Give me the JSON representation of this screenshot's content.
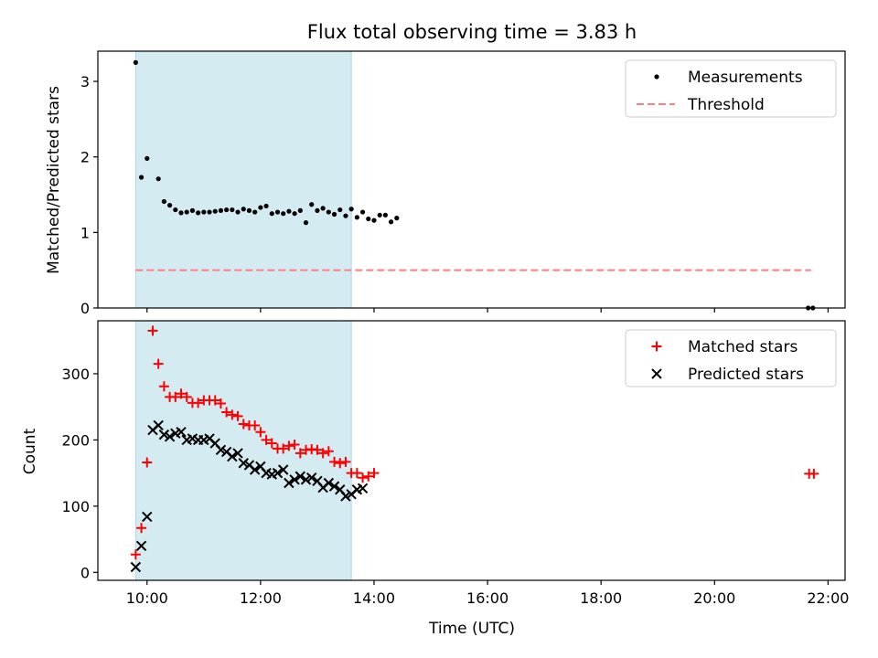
{
  "chart_data": [
    {
      "type": "scatter",
      "title": "Flux total observing time = 3.83 h",
      "xlabel": "",
      "ylabel": "Matched/Predicted stars",
      "xlim": [
        "09:08",
        "22:18"
      ],
      "ylim": [
        0,
        3.4
      ],
      "yticks": [
        0,
        1,
        2,
        3
      ],
      "xticks": [
        "10:00",
        "12:00",
        "14:00",
        "16:00",
        "18:00",
        "20:00",
        "22:00"
      ],
      "shaded_span": [
        "09:48",
        "13:36"
      ],
      "shaded_color": "#add8e6",
      "legend_position": "top-right",
      "series": [
        {
          "name": "Measurements",
          "marker": "dot",
          "color": "#000000",
          "points": [
            [
              "09:48",
              3.25
            ],
            [
              "09:54",
              1.73
            ],
            [
              "10:00",
              1.98
            ],
            [
              "10:12",
              1.71
            ],
            [
              "10:18",
              1.41
            ],
            [
              "10:24",
              1.36
            ],
            [
              "10:30",
              1.3
            ],
            [
              "10:36",
              1.26
            ],
            [
              "10:42",
              1.27
            ],
            [
              "10:48",
              1.29
            ],
            [
              "10:54",
              1.26
            ],
            [
              "11:00",
              1.27
            ],
            [
              "11:06",
              1.27
            ],
            [
              "11:12",
              1.28
            ],
            [
              "11:18",
              1.29
            ],
            [
              "11:24",
              1.3
            ],
            [
              "11:30",
              1.3
            ],
            [
              "11:36",
              1.27
            ],
            [
              "11:42",
              1.31
            ],
            [
              "11:48",
              1.29
            ],
            [
              "11:54",
              1.27
            ],
            [
              "12:00",
              1.33
            ],
            [
              "12:06",
              1.35
            ],
            [
              "12:12",
              1.25
            ],
            [
              "12:18",
              1.27
            ],
            [
              "12:24",
              1.25
            ],
            [
              "12:30",
              1.28
            ],
            [
              "12:36",
              1.25
            ],
            [
              "12:42",
              1.29
            ],
            [
              "12:48",
              1.13
            ],
            [
              "12:54",
              1.37
            ],
            [
              "13:00",
              1.29
            ],
            [
              "13:06",
              1.32
            ],
            [
              "13:12",
              1.27
            ],
            [
              "13:18",
              1.24
            ],
            [
              "13:24",
              1.3
            ],
            [
              "13:30",
              1.22
            ],
            [
              "13:36",
              1.31
            ],
            [
              "13:42",
              1.2
            ],
            [
              "13:48",
              1.27
            ],
            [
              "13:54",
              1.18
            ],
            [
              "14:00",
              1.16
            ],
            [
              "14:06",
              1.23
            ],
            [
              "14:12",
              1.23
            ],
            [
              "14:18",
              1.14
            ],
            [
              "14:24",
              1.19
            ],
            [
              "21:39",
              0.0
            ],
            [
              "21:44",
              0.0
            ]
          ]
        },
        {
          "name": "Threshold",
          "marker": "dashed-line",
          "color": "#ff7f7f",
          "points": [
            [
              "09:48",
              0.5
            ],
            [
              "21:42",
              0.5
            ]
          ]
        }
      ]
    },
    {
      "type": "scatter",
      "title": "",
      "xlabel": "Time (UTC)",
      "ylabel": "Count",
      "xlim": [
        "09:08",
        "22:18"
      ],
      "ylim": [
        -12,
        380
      ],
      "yticks": [
        0,
        100,
        200,
        300
      ],
      "xticks": [
        "10:00",
        "12:00",
        "14:00",
        "16:00",
        "18:00",
        "20:00",
        "22:00"
      ],
      "shaded_span": [
        "09:48",
        "13:36"
      ],
      "shaded_color": "#add8e6",
      "legend_position": "top-right",
      "series": [
        {
          "name": "Matched stars",
          "marker": "plus",
          "color": "#ff0000",
          "points": [
            [
              "09:48",
              27
            ],
            [
              "09:54",
              67
            ],
            [
              "10:00",
              166
            ],
            [
              "10:06",
              365
            ],
            [
              "10:12",
              315
            ],
            [
              "10:18",
              281
            ],
            [
              "10:24",
              265
            ],
            [
              "10:30",
              265
            ],
            [
              "10:36",
              270
            ],
            [
              "10:42",
              265
            ],
            [
              "10:48",
              256
            ],
            [
              "10:54",
              256
            ],
            [
              "11:00",
              260
            ],
            [
              "11:06",
              260
            ],
            [
              "11:12",
              260
            ],
            [
              "11:18",
              255
            ],
            [
              "11:24",
              242
            ],
            [
              "11:30",
              238
            ],
            [
              "11:36",
              236
            ],
            [
              "11:42",
              224
            ],
            [
              "11:48",
              222
            ],
            [
              "11:54",
              222
            ],
            [
              "12:00",
              212
            ],
            [
              "12:06",
              200
            ],
            [
              "12:12",
              195
            ],
            [
              "12:18",
              187
            ],
            [
              "12:24",
              187
            ],
            [
              "12:30",
              191
            ],
            [
              "12:36",
              193
            ],
            [
              "12:42",
              180
            ],
            [
              "12:48",
              185
            ],
            [
              "12:54",
              186
            ],
            [
              "13:00",
              185
            ],
            [
              "13:06",
              180
            ],
            [
              "13:12",
              183
            ],
            [
              "13:18",
              167
            ],
            [
              "13:24",
              165
            ],
            [
              "13:30",
              167
            ],
            [
              "13:36",
              150
            ],
            [
              "13:42",
              150
            ],
            [
              "13:48",
              143
            ],
            [
              "13:54",
              145
            ],
            [
              "14:00",
              150
            ],
            [
              "21:40",
              149
            ],
            [
              "21:45",
              149
            ]
          ]
        },
        {
          "name": "Predicted stars",
          "marker": "x",
          "color": "#000000",
          "points": [
            [
              "09:48",
              8
            ],
            [
              "09:54",
              40
            ],
            [
              "10:00",
              84
            ],
            [
              "10:06",
              215
            ],
            [
              "10:12",
              222
            ],
            [
              "10:18",
              208
            ],
            [
              "10:24",
              205
            ],
            [
              "10:30",
              210
            ],
            [
              "10:36",
              212
            ],
            [
              "10:42",
              200
            ],
            [
              "10:48",
              202
            ],
            [
              "10:54",
              200
            ],
            [
              "11:00",
              200
            ],
            [
              "11:06",
              202
            ],
            [
              "11:12",
              195
            ],
            [
              "11:18",
              185
            ],
            [
              "11:24",
              182
            ],
            [
              "11:30",
              175
            ],
            [
              "11:36",
              180
            ],
            [
              "11:42",
              165
            ],
            [
              "11:48",
              162
            ],
            [
              "11:54",
              155
            ],
            [
              "12:00",
              160
            ],
            [
              "12:06",
              150
            ],
            [
              "12:12",
              148
            ],
            [
              "12:18",
              150
            ],
            [
              "12:24",
              155
            ],
            [
              "12:30",
              135
            ],
            [
              "12:36",
              140
            ],
            [
              "12:42",
              145
            ],
            [
              "12:48",
              140
            ],
            [
              "12:54",
              143
            ],
            [
              "13:00",
              138
            ],
            [
              "13:06",
              128
            ],
            [
              "13:12",
              135
            ],
            [
              "13:18",
              130
            ],
            [
              "13:24",
              125
            ],
            [
              "13:30",
              115
            ],
            [
              "13:36",
              118
            ],
            [
              "13:42",
              125
            ],
            [
              "13:48",
              127
            ]
          ]
        }
      ]
    }
  ]
}
